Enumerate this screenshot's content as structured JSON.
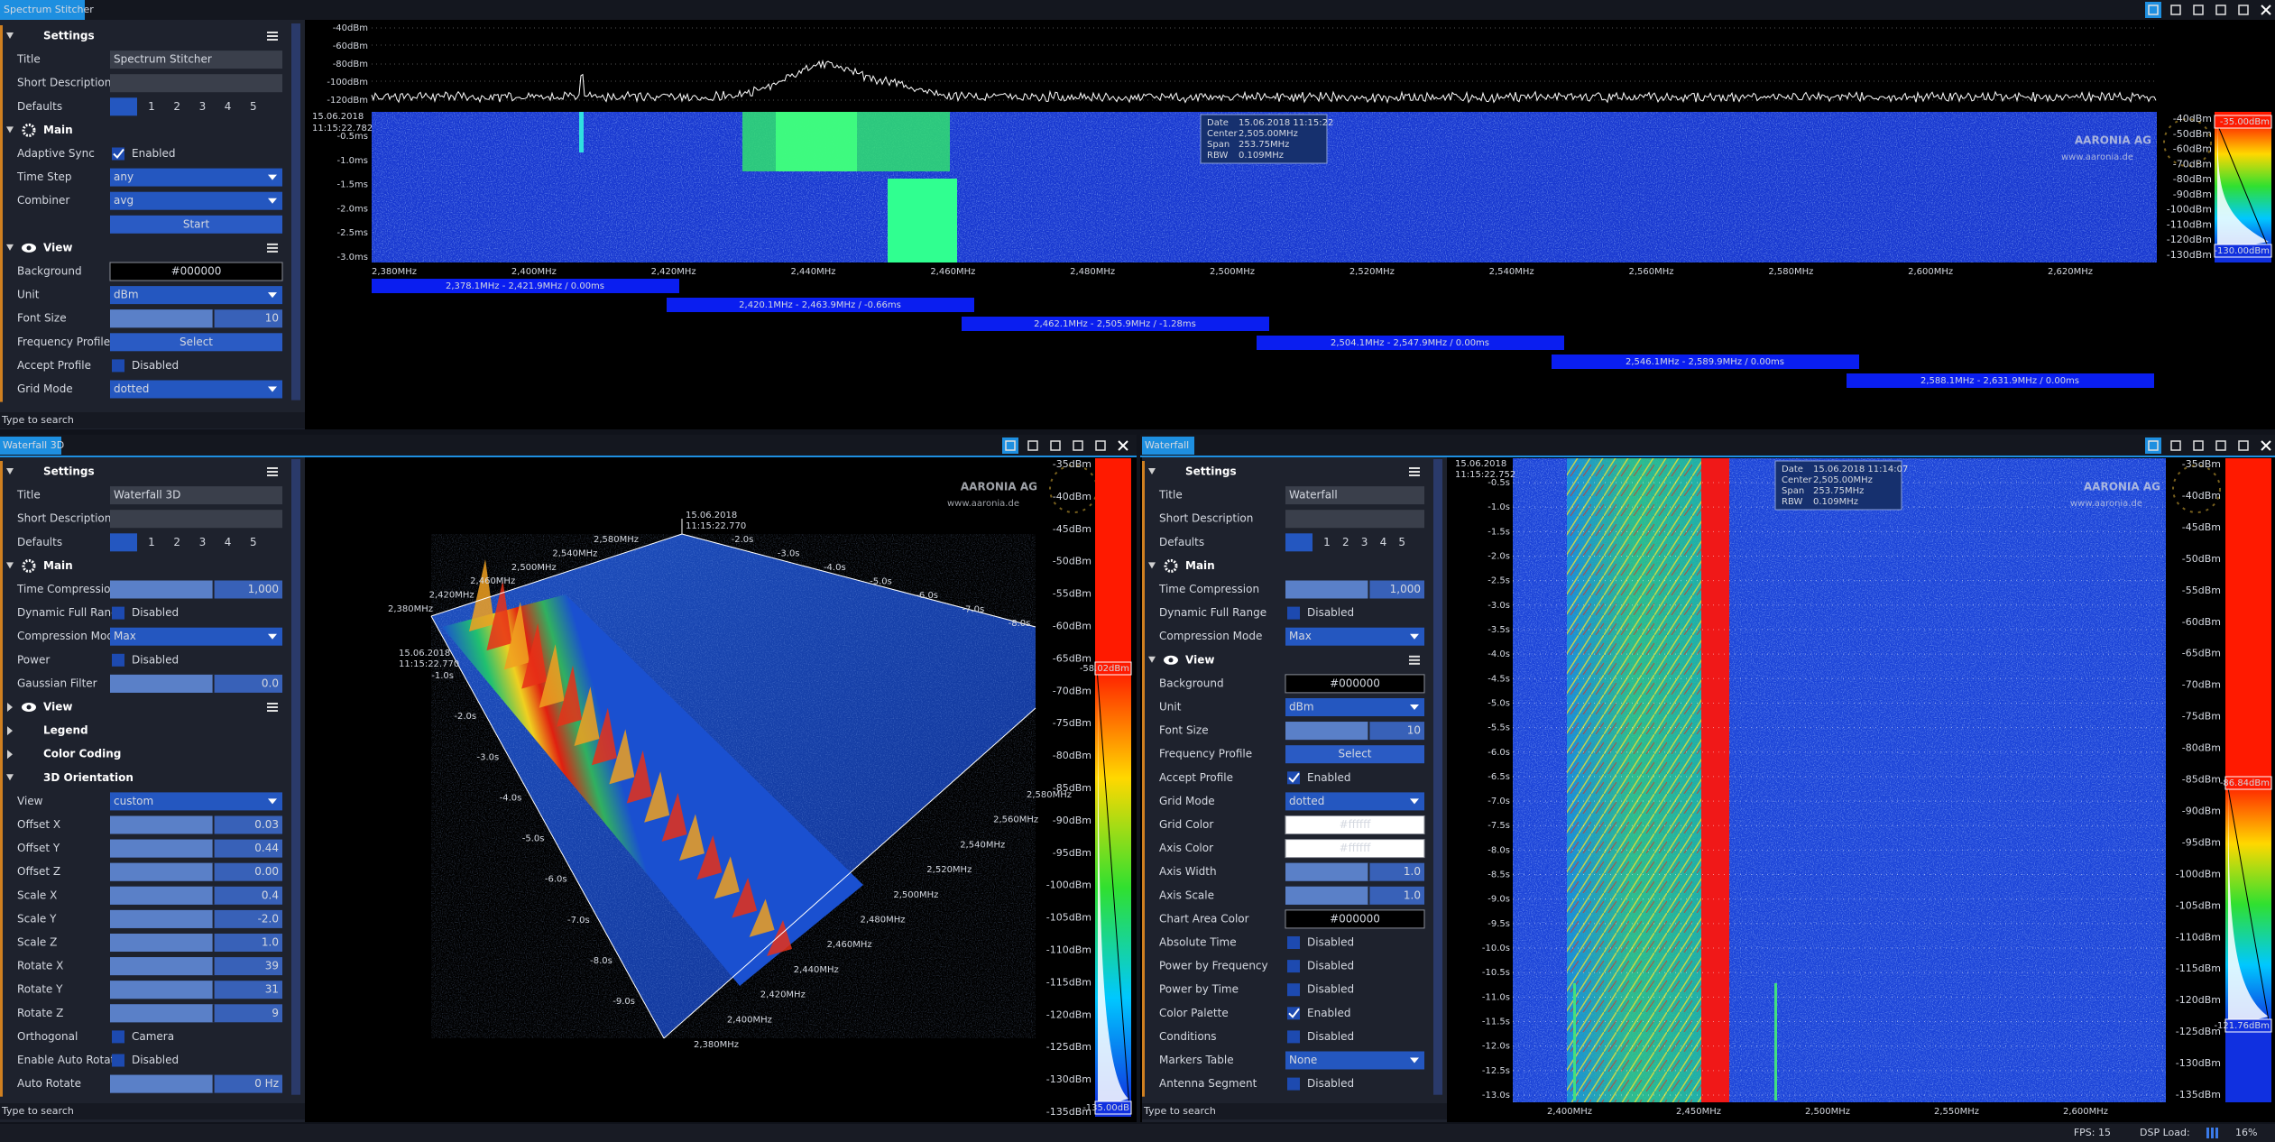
{
  "windows": {
    "stitcher": {
      "tab": "Spectrum Stitcher",
      "search": "Type to search",
      "settings": [
        {
          "kind": "section",
          "label": "Settings",
          "menu": true
        },
        {
          "kind": "field",
          "label": "Title",
          "value": "Spectrum Stitcher"
        },
        {
          "kind": "empty",
          "label": "Short Description"
        },
        {
          "kind": "defaults",
          "label": "Defaults",
          "options": [
            "1",
            "2",
            "3",
            "4",
            "5"
          ]
        },
        {
          "kind": "section",
          "label": "Main",
          "icon": "gear"
        },
        {
          "kind": "check",
          "label": "Adaptive Sync",
          "value": "Enabled",
          "checked": true
        },
        {
          "kind": "select",
          "label": "Time Step",
          "value": "any"
        },
        {
          "kind": "select",
          "label": "Combiner",
          "value": "avg"
        },
        {
          "kind": "button",
          "value": "Start"
        },
        {
          "kind": "section",
          "label": "View",
          "icon": "eye",
          "menu": true
        },
        {
          "kind": "color",
          "label": "Background",
          "value": "#000000"
        },
        {
          "kind": "select",
          "label": "Unit",
          "value": "dBm"
        },
        {
          "kind": "slider",
          "label": "Font Size",
          "value": "10"
        },
        {
          "kind": "button",
          "label": "Frequency Profile",
          "value": "Select"
        },
        {
          "kind": "check",
          "label": "Accept Profile",
          "value": "Disabled",
          "checked": false
        },
        {
          "kind": "select",
          "label": "Grid Mode",
          "value": "dotted"
        }
      ],
      "y_labels": [
        "-40dBm",
        "-60dBm",
        "-80dBm",
        "-100dBm",
        "-120dBm"
      ],
      "timestamp": [
        "15.06.2018",
        "11:15:22.782"
      ],
      "time_labels": [
        "-0.5ms",
        "-1.0ms",
        "-1.5ms",
        "-2.0ms",
        "-2.5ms",
        "-3.0ms"
      ],
      "x_labels": [
        "2,380MHz",
        "2,400MHz",
        "2,420MHz",
        "2,440MHz",
        "2,460MHz",
        "2,480MHz",
        "2,500MHz",
        "2,520MHz",
        "2,540MHz",
        "2,560MHz",
        "2,580MHz",
        "2,600MHz",
        "2,620MHz"
      ],
      "tooltip": [
        [
          "Date",
          "15.06.2018 11:15:22"
        ],
        [
          "Center",
          "2,505.00MHz"
        ],
        [
          "Span",
          "253.75MHz"
        ],
        [
          "RBW",
          "0.109MHz"
        ]
      ],
      "watermark": [
        "AARONIA AG",
        "www.aaronia.de"
      ],
      "colorbar": {
        "top": "-35.00dBm",
        "bottom": "-130.00dBm",
        "labels": [
          "-40dBm",
          "-50dBm",
          "-60dBm",
          "-70dBm",
          "-80dBm",
          "-90dBm",
          "-100dBm",
          "-110dBm",
          "-120dBm",
          "-130dBm"
        ]
      },
      "segments": [
        "2,378.1MHz - 2,421.9MHz / 0.00ms",
        "2,420.1MHz - 2,463.9MHz / -0.66ms",
        "2,462.1MHz - 2,505.9MHz / -1.28ms",
        "2,504.1MHz - 2,547.9MHz / 0.00ms",
        "2,546.1MHz - 2,589.9MHz / 0.00ms",
        "2,588.1MHz - 2,631.9MHz / 0.00ms"
      ]
    },
    "waterfall3d": {
      "tab": "Waterfall 3D",
      "search": "Type to search",
      "settings": [
        {
          "kind": "section",
          "label": "Settings",
          "menu": true
        },
        {
          "kind": "field",
          "label": "Title",
          "value": "Waterfall 3D"
        },
        {
          "kind": "empty",
          "label": "Short Description"
        },
        {
          "kind": "defaults",
          "label": "Defaults",
          "options": [
            "1",
            "2",
            "3",
            "4",
            "5"
          ]
        },
        {
          "kind": "section",
          "label": "Main",
          "icon": "gear"
        },
        {
          "kind": "slider",
          "label": "Time Compression",
          "value": "1,000"
        },
        {
          "kind": "check",
          "label": "Dynamic Full Range",
          "value": "Disabled",
          "checked": false
        },
        {
          "kind": "select",
          "label": "Compression Mode",
          "value": "Max"
        },
        {
          "kind": "check",
          "label": "Power",
          "value": "Disabled",
          "checked": false
        },
        {
          "kind": "slider",
          "label": "Gaussian Filter",
          "value": "0.0"
        },
        {
          "kind": "collapsed",
          "label": "View",
          "icon": "eye",
          "menu": true
        },
        {
          "kind": "collapsed",
          "label": "Legend"
        },
        {
          "kind": "collapsed",
          "label": "Color Coding"
        },
        {
          "kind": "section",
          "label": "3D Orientation"
        },
        {
          "kind": "select",
          "label": "View",
          "value": "custom"
        },
        {
          "kind": "slider",
          "label": "Offset X",
          "value": "0.03"
        },
        {
          "kind": "slider",
          "label": "Offset Y",
          "value": "0.44"
        },
        {
          "kind": "slider",
          "label": "Offset Z",
          "value": "0.00"
        },
        {
          "kind": "slider",
          "label": "Scale X",
          "value": "0.4"
        },
        {
          "kind": "slider",
          "label": "Scale Y",
          "value": "-2.0"
        },
        {
          "kind": "slider",
          "label": "Scale Z",
          "value": "1.0"
        },
        {
          "kind": "slider",
          "label": "Rotate X",
          "value": "39"
        },
        {
          "kind": "slider",
          "label": "Rotate Y",
          "value": "31"
        },
        {
          "kind": "slider",
          "label": "Rotate Z",
          "value": "9"
        },
        {
          "kind": "check",
          "label": "Orthogonal",
          "value": "Camera",
          "checked": false
        },
        {
          "kind": "check",
          "label": "Enable Auto Rotate",
          "value": "Disabled",
          "checked": false
        },
        {
          "kind": "slider",
          "label": "Auto Rotate",
          "value": "0 Hz"
        }
      ],
      "timestamp_top": [
        "15.06.2018",
        "11:15:22.770"
      ],
      "timestamp_left": [
        "15.06.2018",
        "11:15:22.770"
      ],
      "freq_top": [
        "2,380MHz",
        "2,420MHz",
        "2,460MHz",
        "2,500MHz",
        "2,540MHz",
        "2,580MHz"
      ],
      "time_top": [
        "-2.0s",
        "-3.0s",
        "-4.0s",
        "-5.0s",
        "-6.0s",
        "-7.0s",
        "-8.0s"
      ],
      "time_left": [
        "-1.0s",
        "-2.0s",
        "-3.0s",
        "-4.0s",
        "-5.0s",
        "-6.0s",
        "-7.0s",
        "-8.0s",
        "-9.0s"
      ],
      "freq_front": [
        "2,380MHz",
        "2,400MHz",
        "2,420MHz",
        "2,440MHz",
        "2,460MHz",
        "2,480MHz",
        "2,500MHz",
        "2,520MHz",
        "2,540MHz",
        "2,560MHz",
        "2,580MHz"
      ],
      "watermark": [
        "AARONIA AG",
        "www.aaronia.de"
      ],
      "colorbar": {
        "top": "-58.02dBm",
        "bottom": "-135.00dB",
        "labels": [
          "-35dBm",
          "-40dBm",
          "-45dBm",
          "-50dBm",
          "-55dBm",
          "-60dBm",
          "-65dBm",
          "-70dBm",
          "-75dBm",
          "-80dBm",
          "-85dBm",
          "-90dBm",
          "-95dBm",
          "-100dBm",
          "-105dBm",
          "-110dBm",
          "-115dBm",
          "-120dBm",
          "-125dBm",
          "-130dBm",
          "-135dBm"
        ]
      }
    },
    "waterfall": {
      "tab": "Waterfall",
      "search": "Type to search",
      "settings": [
        {
          "kind": "section",
          "label": "Settings",
          "menu": true
        },
        {
          "kind": "field",
          "label": "Title",
          "value": "Waterfall"
        },
        {
          "kind": "empty",
          "label": "Short Description"
        },
        {
          "kind": "defaults",
          "label": "Defaults",
          "options": [
            "1",
            "2",
            "3",
            "4",
            "5"
          ]
        },
        {
          "kind": "section",
          "label": "Main",
          "icon": "gear"
        },
        {
          "kind": "slider",
          "label": "Time Compression",
          "value": "1,000"
        },
        {
          "kind": "check",
          "label": "Dynamic Full Range",
          "value": "Disabled",
          "checked": false
        },
        {
          "kind": "select",
          "label": "Compression Mode",
          "value": "Max"
        },
        {
          "kind": "section",
          "label": "View",
          "icon": "eye",
          "menu": true
        },
        {
          "kind": "color",
          "label": "Background",
          "value": "#000000"
        },
        {
          "kind": "select",
          "label": "Unit",
          "value": "dBm"
        },
        {
          "kind": "slider",
          "label": "Font Size",
          "value": "10"
        },
        {
          "kind": "button",
          "label": "Frequency Profile",
          "value": "Select"
        },
        {
          "kind": "check",
          "label": "Accept Profile",
          "value": "Enabled",
          "checked": true
        },
        {
          "kind": "select",
          "label": "Grid Mode",
          "value": "dotted"
        },
        {
          "kind": "color",
          "label": "Grid Color",
          "value": "#ffffff"
        },
        {
          "kind": "color",
          "label": "Axis Color",
          "value": "#ffffff"
        },
        {
          "kind": "slider",
          "label": "Axis Width",
          "value": "1.0"
        },
        {
          "kind": "slider",
          "label": "Axis Scale",
          "value": "1.0"
        },
        {
          "kind": "color",
          "label": "Chart Area Color",
          "value": "#000000"
        },
        {
          "kind": "check",
          "label": "Absolute Time",
          "value": "Disabled",
          "checked": false
        },
        {
          "kind": "check",
          "label": "Power by Frequency",
          "value": "Disabled",
          "checked": false
        },
        {
          "kind": "check",
          "label": "Power by Time",
          "value": "Disabled",
          "checked": false
        },
        {
          "kind": "check",
          "label": "Color Palette",
          "value": "Enabled",
          "checked": true
        },
        {
          "kind": "check",
          "label": "Conditions",
          "value": "Disabled",
          "checked": false
        },
        {
          "kind": "select",
          "label": "Markers Table",
          "value": "None"
        },
        {
          "kind": "check",
          "label": "Antenna Segment",
          "value": "Disabled",
          "checked": false
        }
      ],
      "timestamp": [
        "15.06.2018",
        "11:15:22.752"
      ],
      "y_labels": [
        "-0.5s",
        "-1.0s",
        "-1.5s",
        "-2.0s",
        "-2.5s",
        "-3.0s",
        "-3.5s",
        "-4.0s",
        "-4.5s",
        "-5.0s",
        "-5.5s",
        "-6.0s",
        "-6.5s",
        "-7.0s",
        "-7.5s",
        "-8.0s",
        "-8.5s",
        "-9.0s",
        "-9.5s",
        "-10.0s",
        "-10.5s",
        "-11.0s",
        "-11.5s",
        "-12.0s",
        "-12.5s",
        "-13.0s"
      ],
      "x_labels": [
        "2,400MHz",
        "2,450MHz",
        "2,500MHz",
        "2,550MHz",
        "2,600MHz"
      ],
      "tooltip": [
        [
          "Date",
          "15.06.2018 11:14:07"
        ],
        [
          "Center",
          "2,505.00MHz"
        ],
        [
          "Span",
          "253.75MHz"
        ],
        [
          "RBW",
          "0.109MHz"
        ]
      ],
      "watermark": [
        "AARONIA AG",
        "www.aaronia.de"
      ],
      "colorbar": {
        "top": "-86.84dBm",
        "bottom": "-121.76dBm",
        "labels": [
          "-35dBm",
          "-40dBm",
          "-45dBm",
          "-50dBm",
          "-55dBm",
          "-60dBm",
          "-65dBm",
          "-70dBm",
          "-75dBm",
          "-80dBm",
          "-85dBm",
          "-90dBm",
          "-95dBm",
          "-100dBm",
          "-105dBm",
          "-110dBm",
          "-115dBm",
          "-120dBm",
          "-125dBm",
          "-130dBm",
          "-135dBm"
        ]
      }
    }
  },
  "status": {
    "fps": "FPS: 15",
    "dsp_label": "DSP Load:",
    "dsp_value": "16%"
  }
}
